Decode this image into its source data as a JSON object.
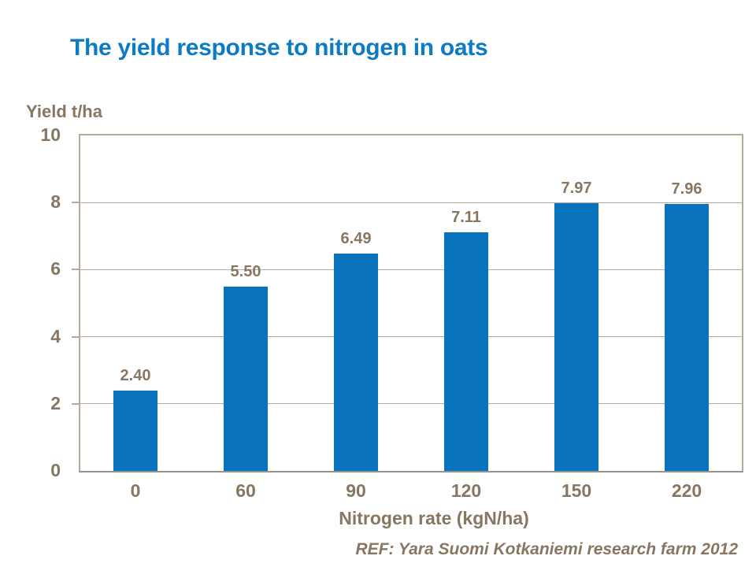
{
  "colors": {
    "title_blue": "#0d7ac4",
    "bar_blue": "#0973bd",
    "text_brown": "#877662",
    "frame_taupe": "#b4aa9c",
    "axis_gray": "#97928a",
    "background": "#ffffff"
  },
  "footer": {
    "reference": "REF: Yara Suomi Kotkaniemi research farm 2012"
  },
  "chart_data": {
    "type": "bar",
    "title": "The yield response to nitrogen in oats",
    "xlabel": "Nitrogen rate (kgN/ha)",
    "ylabel": "Yield t/ha",
    "categories": [
      "0",
      "60",
      "90",
      "120",
      "150",
      "220"
    ],
    "values": [
      2.4,
      5.5,
      6.49,
      7.11,
      7.97,
      7.96
    ],
    "value_labels": [
      "2.40",
      "5.50",
      "6.49",
      "7.11",
      "7.97",
      "7.96"
    ],
    "ylim": [
      0,
      10
    ],
    "yticks": [
      0,
      2,
      4,
      6,
      8,
      10
    ],
    "grid": "horizontal",
    "legend": "none"
  }
}
